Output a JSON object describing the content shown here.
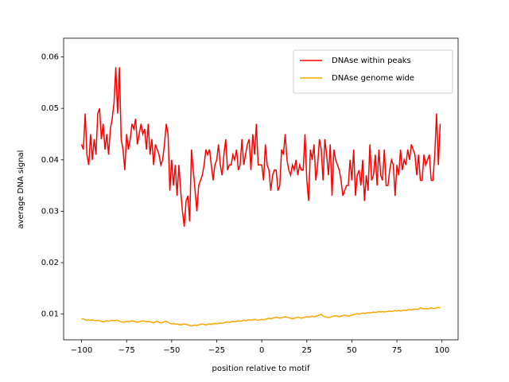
{
  "chart_data": {
    "type": "line",
    "xlabel": "position relative to motif",
    "ylabel": "average DNA signal",
    "xlim": [
      -109.95,
      108.95
    ],
    "ylim": [
      0.005,
      0.0621
    ],
    "xticks": [
      {
        "value": -100,
        "label": "−100"
      },
      {
        "value": -75,
        "label": "−75"
      },
      {
        "value": -50,
        "label": "−50"
      },
      {
        "value": -25,
        "label": "−25"
      },
      0,
      25,
      50,
      75,
      100
    ],
    "yticks": [
      0.01,
      0.02,
      0.03,
      0.04,
      0.05,
      0.06
    ],
    "grid": false,
    "legend": "upper right",
    "x": [
      -100,
      -99,
      -98,
      -97,
      -96,
      -95,
      -94,
      -93,
      -92,
      -91,
      -90,
      -89,
      -88,
      -87,
      -86,
      -85,
      -84,
      -83,
      -82,
      -81,
      -80,
      -79,
      -78,
      -77,
      -76,
      -75,
      -74,
      -73,
      -72,
      -71,
      -70,
      -69,
      -68,
      -67,
      -66,
      -65,
      -64,
      -63,
      -62,
      -61,
      -60,
      -59,
      -58,
      -57,
      -56,
      -55,
      -54,
      -53,
      -52,
      -51,
      -50,
      -49,
      -48,
      -47,
      -46,
      -45,
      -44,
      -43,
      -42,
      -41,
      -40,
      -39,
      -38,
      -37,
      -36,
      -35,
      -34,
      -33,
      -32,
      -31,
      -30,
      -29,
      -28,
      -27,
      -26,
      -25,
      -24,
      -23,
      -22,
      -21,
      -20,
      -19,
      -18,
      -17,
      -16,
      -15,
      -14,
      -13,
      -12,
      -11,
      -10,
      -9,
      -8,
      -7,
      -6,
      -5,
      -4,
      -3,
      -2,
      -1,
      0,
      1,
      2,
      3,
      4,
      5,
      6,
      7,
      8,
      9,
      10,
      11,
      12,
      13,
      14,
      15,
      16,
      17,
      18,
      19,
      20,
      21,
      22,
      23,
      24,
      25,
      26,
      27,
      28,
      29,
      30,
      31,
      32,
      33,
      34,
      35,
      36,
      37,
      38,
      39,
      40,
      41,
      42,
      43,
      44,
      45,
      46,
      47,
      48,
      49,
      50,
      51,
      52,
      53,
      54,
      55,
      56,
      57,
      58,
      59,
      60,
      61,
      62,
      63,
      64,
      65,
      66,
      67,
      68,
      69,
      70,
      71,
      72,
      73,
      74,
      75,
      76,
      77,
      78,
      79,
      80,
      81,
      82,
      83,
      84,
      85,
      86,
      87,
      88,
      89,
      90,
      91,
      92,
      93,
      94,
      95,
      96,
      97,
      98,
      99
    ],
    "series": [
      {
        "name": "DNAse within peaks",
        "color": "#ff0000",
        "values": [
          0.043,
          0.042,
          0.049,
          0.041,
          0.039,
          0.045,
          0.04,
          0.044,
          0.041,
          0.049,
          0.05,
          0.044,
          0.047,
          0.042,
          0.045,
          0.041,
          0.046,
          0.048,
          0.051,
          0.058,
          0.049,
          0.058,
          0.044,
          0.042,
          0.038,
          0.045,
          0.042,
          0.044,
          0.047,
          0.046,
          0.048,
          0.043,
          0.045,
          0.047,
          0.045,
          0.046,
          0.042,
          0.047,
          0.041,
          0.044,
          0.039,
          0.043,
          0.042,
          0.041,
          0.039,
          0.04,
          0.043,
          0.047,
          0.045,
          0.034,
          0.04,
          0.035,
          0.039,
          0.033,
          0.039,
          0.034,
          0.03,
          0.027,
          0.032,
          0.033,
          0.028,
          0.042,
          0.038,
          0.034,
          0.03,
          0.035,
          0.036,
          0.037,
          0.039,
          0.042,
          0.041,
          0.042,
          0.039,
          0.036,
          0.039,
          0.04,
          0.043,
          0.039,
          0.037,
          0.041,
          0.044,
          0.038,
          0.039,
          0.039,
          0.041,
          0.04,
          0.042,
          0.038,
          0.039,
          0.044,
          0.039,
          0.041,
          0.043,
          0.044,
          0.038,
          0.045,
          0.041,
          0.047,
          0.039,
          0.039,
          0.039,
          0.036,
          0.043,
          0.039,
          0.038,
          0.034,
          0.037,
          0.038,
          0.038,
          0.034,
          0.035,
          0.042,
          0.041,
          0.045,
          0.04,
          0.038,
          0.037,
          0.039,
          0.038,
          0.04,
          0.037,
          0.039,
          0.038,
          0.038,
          0.045,
          0.036,
          0.032,
          0.042,
          0.04,
          0.043,
          0.036,
          0.039,
          0.044,
          0.042,
          0.036,
          0.044,
          0.041,
          0.037,
          0.043,
          0.033,
          0.042,
          0.04,
          0.039,
          0.038,
          0.036,
          0.033,
          0.034,
          0.035,
          0.035,
          0.04,
          0.036,
          0.042,
          0.033,
          0.037,
          0.038,
          0.035,
          0.04,
          0.032,
          0.037,
          0.034,
          0.043,
          0.036,
          0.037,
          0.041,
          0.035,
          0.042,
          0.037,
          0.036,
          0.042,
          0.035,
          0.035,
          0.038,
          0.04,
          0.039,
          0.033,
          0.039,
          0.037,
          0.042,
          0.038,
          0.04,
          0.039,
          0.042,
          0.04,
          0.043,
          0.042,
          0.041,
          0.037,
          0.041,
          0.036,
          0.036,
          0.041,
          0.039,
          0.04,
          0.041,
          0.036,
          0.036,
          0.041,
          0.049,
          0.039,
          0.047
        ]
      },
      {
        "name": "DNAse genome wide",
        "color": "#ffa500",
        "values": [
          0.009,
          0.0091,
          0.0089,
          0.0088,
          0.0089,
          0.0088,
          0.0089,
          0.0088,
          0.0087,
          0.0088,
          0.0087,
          0.0086,
          0.0085,
          0.0086,
          0.0087,
          0.0086,
          0.0087,
          0.0088,
          0.0087,
          0.0088,
          0.0088,
          0.0086,
          0.0085,
          0.0084,
          0.0085,
          0.0086,
          0.0085,
          0.0086,
          0.0087,
          0.0086,
          0.0085,
          0.0084,
          0.0085,
          0.0086,
          0.0087,
          0.0086,
          0.0085,
          0.0086,
          0.0085,
          0.0084,
          0.0083,
          0.0085,
          0.0086,
          0.0084,
          0.0083,
          0.0084,
          0.0085,
          0.0086,
          0.0084,
          0.0082,
          0.0081,
          0.0082,
          0.008,
          0.0081,
          0.008,
          0.0079,
          0.008,
          0.0081,
          0.008,
          0.0079,
          0.0078,
          0.0077,
          0.0078,
          0.0079,
          0.0078,
          0.0079,
          0.008,
          0.0081,
          0.008,
          0.0079,
          0.008,
          0.0081,
          0.008,
          0.0081,
          0.0082,
          0.0081,
          0.0082,
          0.0083,
          0.0082,
          0.0083,
          0.0084,
          0.0085,
          0.0084,
          0.0085,
          0.0086,
          0.0085,
          0.0086,
          0.0087,
          0.0086,
          0.0087,
          0.0088,
          0.0087,
          0.0088,
          0.0089,
          0.0088,
          0.0089,
          0.009,
          0.0089,
          0.0088,
          0.0089,
          0.009,
          0.0089,
          0.009,
          0.0091,
          0.0092,
          0.0091,
          0.0092,
          0.0093,
          0.0094,
          0.0093,
          0.0092,
          0.0093,
          0.0094,
          0.0095,
          0.0094,
          0.0093,
          0.0092,
          0.0091,
          0.0092,
          0.0093,
          0.0094,
          0.0093,
          0.0092,
          0.0093,
          0.0094,
          0.0095,
          0.0094,
          0.0095,
          0.0096,
          0.0095,
          0.0096,
          0.0097,
          0.0098,
          0.01,
          0.0096,
          0.0095,
          0.0094,
          0.0093,
          0.0094,
          0.0095,
          0.0096,
          0.0097,
          0.0096,
          0.0095,
          0.0096,
          0.0097,
          0.0098,
          0.0097,
          0.0096,
          0.0097,
          0.0098,
          0.0099,
          0.01,
          0.0101,
          0.01,
          0.0101,
          0.0102,
          0.0101,
          0.0102,
          0.0103,
          0.0102,
          0.0103,
          0.0104,
          0.0103,
          0.0104,
          0.0105,
          0.0104,
          0.0105,
          0.0104,
          0.0105,
          0.0105,
          0.0106,
          0.0105,
          0.0106,
          0.0107,
          0.0106,
          0.0107,
          0.0106,
          0.0107,
          0.0108,
          0.0107,
          0.0108,
          0.0109,
          0.0108,
          0.0109,
          0.011,
          0.0109,
          0.011,
          0.0112,
          0.0111,
          0.011,
          0.0111,
          0.011,
          0.0111,
          0.0112,
          0.0111,
          0.0111,
          0.0112,
          0.0113,
          0.0112
        ]
      }
    ]
  }
}
